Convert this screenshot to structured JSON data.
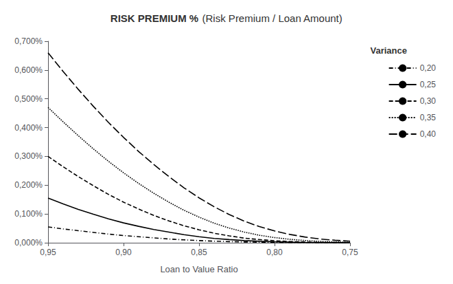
{
  "chart_data": {
    "type": "line",
    "title": "RISK PREMIUM %",
    "subtitle": "(Risk Premium / Loan Amount)",
    "xlabel": "Loan to Value Ratio",
    "legend_title": "Variance",
    "x": [
      0.95,
      0.94,
      0.93,
      0.92,
      0.91,
      0.9,
      0.89,
      0.88,
      0.87,
      0.86,
      0.85,
      0.84,
      0.83,
      0.82,
      0.81,
      0.8,
      0.79,
      0.78,
      0.77,
      0.76,
      0.75
    ],
    "series": [
      {
        "name": "0,20",
        "color": "#000000",
        "line_style": "dashdot",
        "values": [
          0.00055,
          0.00048,
          0.00042,
          0.00036,
          0.0003,
          0.00025,
          0.00021,
          0.00017,
          0.00013,
          0.0001,
          7.5e-05,
          5.5e-05,
          4e-05,
          2.8e-05,
          1.8e-05,
          1.2e-05,
          8e-06,
          5e-06,
          3e-06,
          2e-06,
          1e-06
        ]
      },
      {
        "name": "0,25",
        "color": "#000000",
        "line_style": "solid",
        "values": [
          0.00155,
          0.00135,
          0.00116,
          0.00099,
          0.00083,
          0.00069,
          0.00057,
          0.00046,
          0.00037,
          0.00028,
          0.00021,
          0.00015,
          0.00011,
          7.5e-05,
          5e-05,
          3.2e-05,
          2e-05,
          1.2e-05,
          7e-06,
          4e-06,
          2e-06
        ]
      },
      {
        "name": "0,30",
        "color": "#000000",
        "line_style": "dashed",
        "values": [
          0.003,
          0.00264,
          0.0023,
          0.00198,
          0.00168,
          0.00141,
          0.00117,
          0.00095,
          0.00076,
          0.00059,
          0.00045,
          0.00033,
          0.00024,
          0.00016,
          0.00011,
          7e-05,
          4.3e-05,
          2.6e-05,
          1.5e-05,
          9e-06,
          5e-06
        ]
      },
      {
        "name": "0,35",
        "color": "#000000",
        "line_style": "dotted",
        "values": [
          0.0047,
          0.0042,
          0.00372,
          0.00326,
          0.00283,
          0.00243,
          0.00206,
          0.00172,
          0.00141,
          0.00113,
          0.00089,
          0.00068,
          0.00051,
          0.00037,
          0.00026,
          0.00018,
          0.00012,
          7.7e-05,
          4.7e-05,
          2.8e-05,
          1.6e-05
        ]
      },
      {
        "name": "0,40",
        "color": "#000000",
        "line_style": "longdash",
        "values": [
          0.0066,
          0.00595,
          0.00533,
          0.00474,
          0.00418,
          0.00366,
          0.00317,
          0.00272,
          0.0023,
          0.00191,
          0.00156,
          0.00125,
          0.00098,
          0.00075,
          0.00056,
          0.00041,
          0.00029,
          0.0002,
          0.00013,
          8.6e-05,
          5.5e-05
        ]
      }
    ],
    "xlim": [
      0.95,
      0.75
    ],
    "xticks": [
      {
        "value": 0.95,
        "label": "0,95"
      },
      {
        "value": 0.9,
        "label": "0,90"
      },
      {
        "value": 0.85,
        "label": "0,85"
      },
      {
        "value": 0.8,
        "label": "0,80"
      },
      {
        "value": 0.75,
        "label": "0,75"
      }
    ],
    "ylim": [
      0.0,
      0.007
    ],
    "yticks": [
      {
        "value": 0.0,
        "label": "0,000%"
      },
      {
        "value": 0.001,
        "label": "0,100%"
      },
      {
        "value": 0.002,
        "label": "0,200%"
      },
      {
        "value": 0.003,
        "label": "0,300%"
      },
      {
        "value": 0.004,
        "label": "0,400%"
      },
      {
        "value": 0.005,
        "label": "0,500%"
      },
      {
        "value": 0.006,
        "label": "0,600%"
      },
      {
        "value": 0.007,
        "label": "0,700%"
      }
    ],
    "grid": false,
    "legend": "right"
  }
}
